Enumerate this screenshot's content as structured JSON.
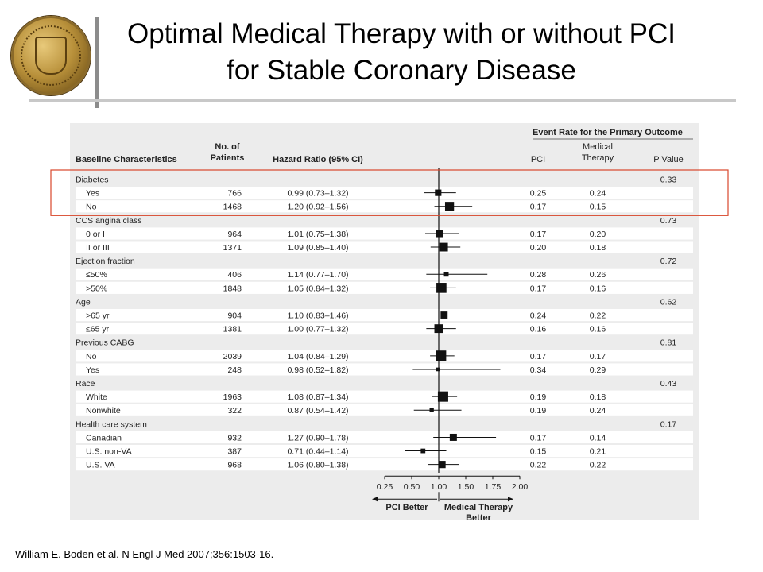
{
  "slide": {
    "title_line1": "Optimal Medical Therapy with or without PCI",
    "title_line2": "for Stable Coronary Disease",
    "citation": "William E. Boden et al. N Engl J Med 2007;356:1503-16."
  },
  "colors": {
    "highlight": "#d9472b",
    "row_band": "#ffffff",
    "figure_bg": "#ececec"
  },
  "chart_data": {
    "type": "forest",
    "columns": {
      "baseline": "Baseline Characteristics",
      "patients_line1": "No. of",
      "patients_line2": "Patients",
      "hazard": "Hazard Ratio (95% CI)",
      "event_header": "Event Rate for the Primary Outcome",
      "pci": "PCI",
      "medical_line1": "Medical",
      "medical_line2": "Therapy",
      "pvalue": "P Value"
    },
    "groups": [
      {
        "name": "Diabetes",
        "p": "0.33",
        "rows": [
          {
            "label": "Yes",
            "n": "766",
            "hr_text": "0.99 (0.73–1.32)",
            "hr": 0.99,
            "lo": 0.73,
            "hi": 1.32,
            "pci": "0.25",
            "med": "0.24"
          },
          {
            "label": "No",
            "n": "1468",
            "hr_text": "1.20 (0.92–1.56)",
            "hr": 1.2,
            "lo": 0.92,
            "hi": 1.56,
            "pci": "0.17",
            "med": "0.15"
          }
        ]
      },
      {
        "name": "CCS angina class",
        "p": "0.73",
        "rows": [
          {
            "label": "0 or I",
            "n": "964",
            "hr_text": "1.01 (0.75–1.38)",
            "hr": 1.01,
            "lo": 0.75,
            "hi": 1.38,
            "pci": "0.17",
            "med": "0.20"
          },
          {
            "label": "II or III",
            "n": "1371",
            "hr_text": "1.09 (0.85–1.40)",
            "hr": 1.09,
            "lo": 0.85,
            "hi": 1.4,
            "pci": "0.20",
            "med": "0.18"
          }
        ]
      },
      {
        "name": "Ejection fraction",
        "p": "0.72",
        "rows": [
          {
            "label": "≤50%",
            "n": "406",
            "hr_text": "1.14 (0.77–1.70)",
            "hr": 1.14,
            "lo": 0.77,
            "hi": 1.7,
            "pci": "0.28",
            "med": "0.26"
          },
          {
            "label": ">50%",
            "n": "1848",
            "hr_text": "1.05 (0.84–1.32)",
            "hr": 1.05,
            "lo": 0.84,
            "hi": 1.32,
            "pci": "0.17",
            "med": "0.16"
          }
        ]
      },
      {
        "name": "Age",
        "p": "0.62",
        "rows": [
          {
            "label": ">65 yr",
            "n": "904",
            "hr_text": "1.10 (0.83–1.46)",
            "hr": 1.1,
            "lo": 0.83,
            "hi": 1.46,
            "pci": "0.24",
            "med": "0.22"
          },
          {
            "label": "≤65 yr",
            "n": "1381",
            "hr_text": "1.00 (0.77–1.32)",
            "hr": 1.0,
            "lo": 0.77,
            "hi": 1.32,
            "pci": "0.16",
            "med": "0.16"
          }
        ]
      },
      {
        "name": "Previous CABG",
        "p": "0.81",
        "rows": [
          {
            "label": "No",
            "n": "2039",
            "hr_text": "1.04 (0.84–1.29)",
            "hr": 1.04,
            "lo": 0.84,
            "hi": 1.29,
            "pci": "0.17",
            "med": "0.17"
          },
          {
            "label": "Yes",
            "n": "248",
            "hr_text": "0.98 (0.52–1.82)",
            "hr": 0.98,
            "lo": 0.52,
            "hi": 1.82,
            "pci": "0.34",
            "med": "0.29"
          }
        ]
      },
      {
        "name": "Race",
        "p": "0.43",
        "rows": [
          {
            "label": "White",
            "n": "1963",
            "hr_text": "1.08 (0.87–1.34)",
            "hr": 1.08,
            "lo": 0.87,
            "hi": 1.34,
            "pci": "0.19",
            "med": "0.18"
          },
          {
            "label": "Nonwhite",
            "n": "322",
            "hr_text": "0.87 (0.54–1.42)",
            "hr": 0.87,
            "lo": 0.54,
            "hi": 1.42,
            "pci": "0.19",
            "med": "0.24"
          }
        ]
      },
      {
        "name": "Health care system",
        "p": "0.17",
        "rows": [
          {
            "label": "Canadian",
            "n": "932",
            "hr_text": "1.27 (0.90–1.78)",
            "hr": 1.27,
            "lo": 0.9,
            "hi": 1.78,
            "pci": "0.17",
            "med": "0.14"
          },
          {
            "label": "U.S. non-VA",
            "n": "387",
            "hr_text": "0.71 (0.44–1.14)",
            "hr": 0.71,
            "lo": 0.44,
            "hi": 1.14,
            "pci": "0.15",
            "med": "0.21"
          },
          {
            "label": "U.S. VA",
            "n": "968",
            "hr_text": "1.06 (0.80–1.38)",
            "hr": 1.06,
            "lo": 0.8,
            "hi": 1.38,
            "pci": "0.22",
            "med": "0.22"
          }
        ]
      }
    ],
    "x_axis": {
      "ticks": [
        "0.25",
        "0.50",
        "1.00",
        "1.50",
        "1.75",
        "2.00"
      ],
      "reference": 1.0
    },
    "favors_left": "PCI Better",
    "favors_right_line1": "Medical Therapy",
    "favors_right_line2": "Better",
    "highlighted_group": "Diabetes"
  }
}
